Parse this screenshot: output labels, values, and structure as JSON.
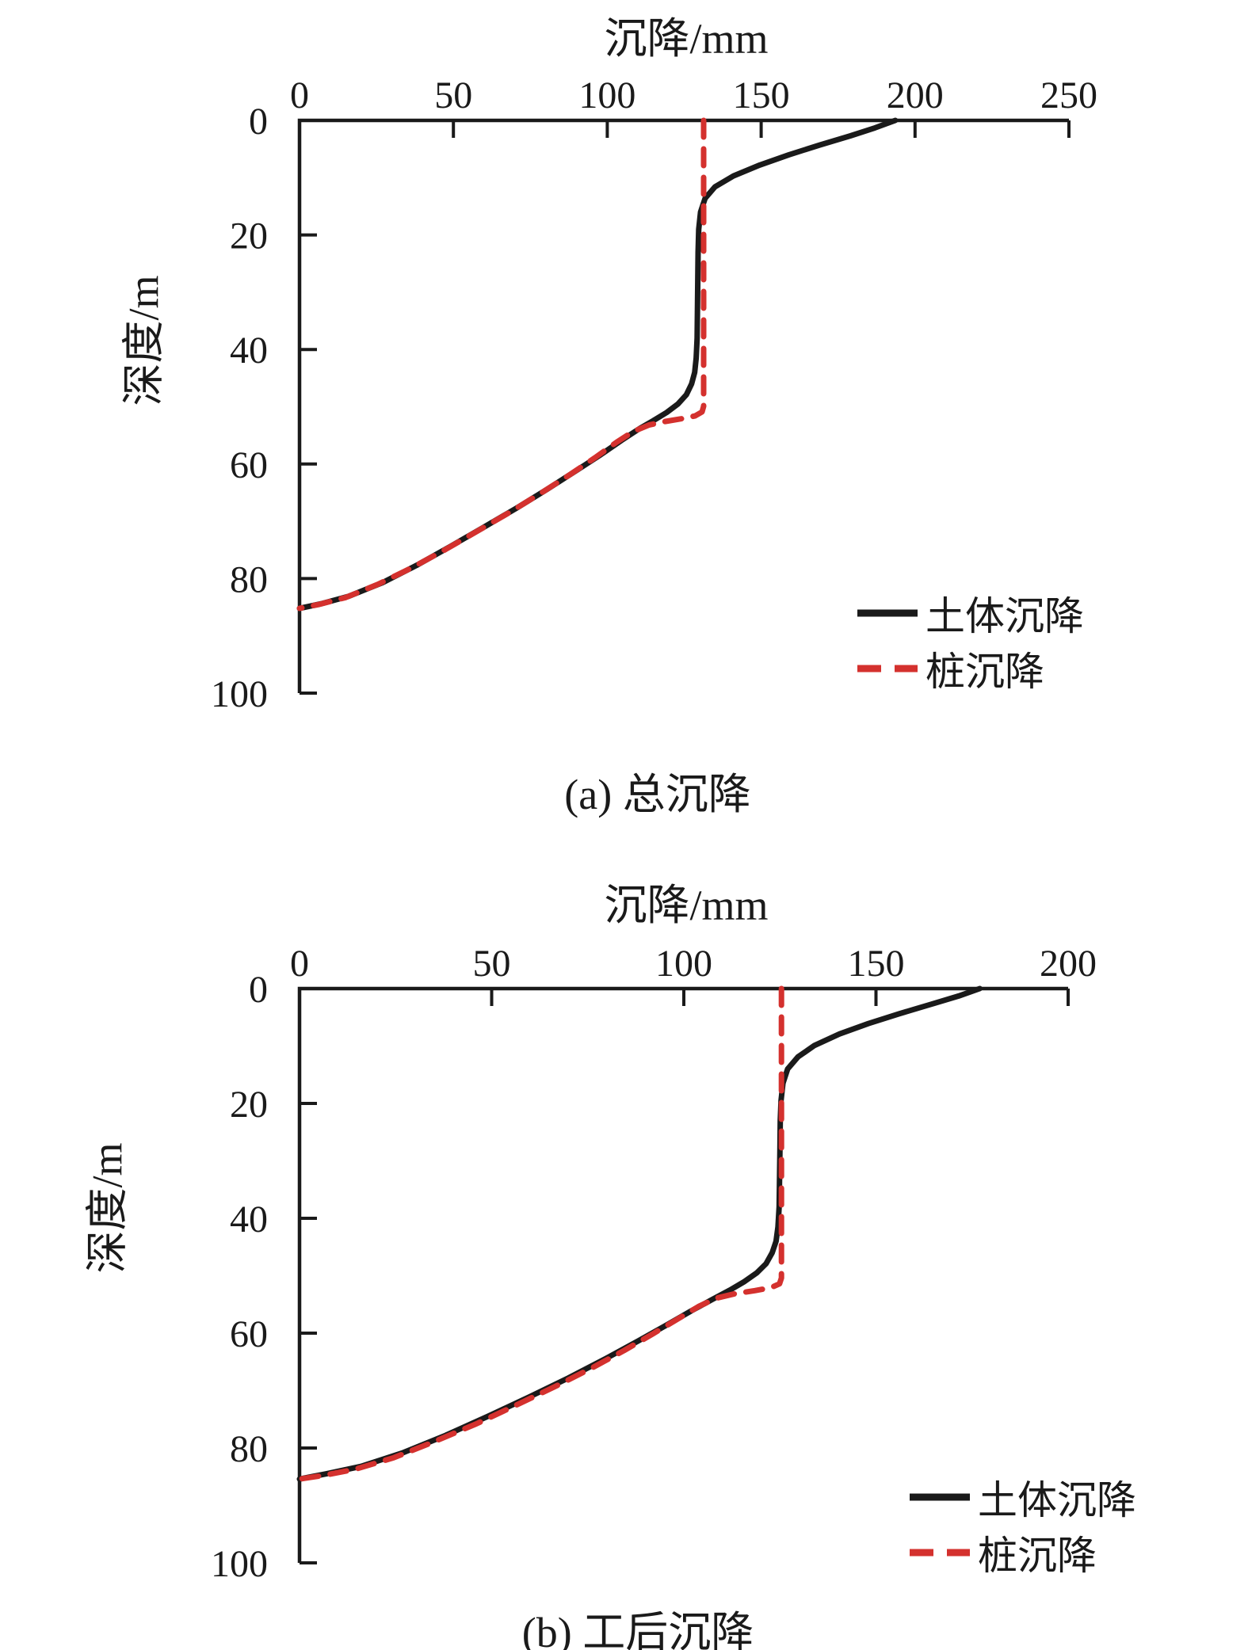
{
  "figure": {
    "background": "#ffffff"
  },
  "colors": {
    "soil": "#1a1a1a",
    "pile": "#d4312e",
    "axis": "#1a1a1a",
    "text": "#1a1a1a"
  },
  "chart_data": [
    {
      "id": "a",
      "type": "line",
      "title": "沉降/mm",
      "ylabel": "深度/m",
      "caption": "(a) 总沉降",
      "xlim": [
        0,
        250
      ],
      "xticks": [
        0,
        50,
        100,
        150,
        200,
        250
      ],
      "ylim": [
        0,
        100
      ],
      "yticks": [
        0,
        20,
        40,
        60,
        80,
        100
      ],
      "y_axis_inverted": true,
      "grid": false,
      "legend_position": "lower right",
      "legend": [
        "土体沉降",
        "桩沉降"
      ],
      "series": [
        {
          "name": "土体沉降",
          "line": "solid",
          "color_key": "soil",
          "points_mm_depth": [
            [
              193.6,
              0
            ],
            [
              187,
              1.3
            ],
            [
              179,
              2.7
            ],
            [
              169,
              4.3
            ],
            [
              159,
              6
            ],
            [
              149.5,
              7.8
            ],
            [
              141,
              9.7
            ],
            [
              135,
              11.6
            ],
            [
              131.8,
              13.6
            ],
            [
              130.3,
              16
            ],
            [
              129.7,
              19
            ],
            [
              129.5,
              23
            ],
            [
              129.4,
              28
            ],
            [
              129.3,
              33
            ],
            [
              129.2,
              38
            ],
            [
              128.9,
              41.5
            ],
            [
              128.4,
              44
            ],
            [
              127.4,
              46
            ],
            [
              125.7,
              47.9
            ],
            [
              123,
              49.5
            ],
            [
              119.3,
              51
            ],
            [
              115,
              52.4
            ],
            [
              110.5,
              53.8
            ],
            [
              104.5,
              55.9
            ],
            [
              97.5,
              58.5
            ],
            [
              89.5,
              61.3
            ],
            [
              80.5,
              64.4
            ],
            [
              70.5,
              67.7
            ],
            [
              60,
              71
            ],
            [
              49,
              74.4
            ],
            [
              38,
              77.7
            ],
            [
              27,
              80.7
            ],
            [
              16,
              83.1
            ],
            [
              7,
              84.4
            ],
            [
              0,
              85.2
            ]
          ]
        },
        {
          "name": "桩沉降",
          "line": "dashed",
          "color_key": "pile",
          "points_mm_depth": [
            [
              131.3,
              0
            ],
            [
              131.3,
              49.9
            ],
            [
              130.8,
              50.9
            ],
            [
              128.5,
              51.6
            ],
            [
              124,
              52.1
            ],
            [
              118.5,
              52.6
            ],
            [
              113.5,
              53.2
            ],
            [
              108.5,
              54.3
            ],
            [
              103,
              56.2
            ],
            [
              96,
              58.9
            ],
            [
              88,
              61.8
            ],
            [
              79,
              64.9
            ],
            [
              69,
              68.2
            ],
            [
              58.5,
              71.5
            ],
            [
              47.5,
              74.9
            ],
            [
              36.5,
              78.1
            ],
            [
              25.5,
              81
            ],
            [
              15,
              83.3
            ],
            [
              6.5,
              84.5
            ],
            [
              0,
              85.2
            ]
          ]
        }
      ]
    },
    {
      "id": "b",
      "type": "line",
      "title": "沉降/mm",
      "ylabel": "深度/m",
      "caption": "(b) 工后沉降",
      "xlim": [
        0,
        200
      ],
      "xticks": [
        0,
        50,
        100,
        150,
        200
      ],
      "ylim": [
        0,
        100
      ],
      "yticks": [
        0,
        20,
        40,
        60,
        80,
        100
      ],
      "y_axis_inverted": true,
      "grid": false,
      "legend_position": "lower right",
      "legend": [
        "土体沉降",
        "桩沉降"
      ],
      "series": [
        {
          "name": "土体沉降",
          "line": "solid",
          "color_key": "soil",
          "points_mm_depth": [
            [
              177,
              0
            ],
            [
              171.5,
              1.3
            ],
            [
              164,
              2.8
            ],
            [
              156,
              4.4
            ],
            [
              148,
              6.1
            ],
            [
              140.5,
              7.9
            ],
            [
              134,
              9.9
            ],
            [
              129.7,
              11.9
            ],
            [
              127,
              14
            ],
            [
              125.8,
              16.5
            ],
            [
              125.3,
              19.5
            ],
            [
              125.1,
              23
            ],
            [
              125,
              28
            ],
            [
              124.9,
              33
            ],
            [
              124.8,
              38
            ],
            [
              124.5,
              41.5
            ],
            [
              124,
              44
            ],
            [
              123,
              46
            ],
            [
              121.4,
              47.9
            ],
            [
              119,
              49.5
            ],
            [
              115.8,
              51
            ],
            [
              112,
              52.5
            ],
            [
              107.5,
              54.1
            ],
            [
              102,
              56.1
            ],
            [
              95.5,
              58.6
            ],
            [
              88,
              61.4
            ],
            [
              79.5,
              64.5
            ],
            [
              70,
              67.8
            ],
            [
              59.8,
              71.1
            ],
            [
              49,
              74.5
            ],
            [
              38,
              77.8
            ],
            [
              27,
              80.8
            ],
            [
              16,
              83.2
            ],
            [
              7,
              84.5
            ],
            [
              0,
              85.4
            ]
          ]
        },
        {
          "name": "桩沉降",
          "line": "dashed",
          "color_key": "pile",
          "points_mm_depth": [
            [
              125.4,
              0
            ],
            [
              125.4,
              50.4
            ],
            [
              124.9,
              51.4
            ],
            [
              122.6,
              52.1
            ],
            [
              118.5,
              52.6
            ],
            [
              113.5,
              53.1
            ],
            [
              108.5,
              53.9
            ],
            [
              104,
              55.3
            ],
            [
              98.5,
              57.5
            ],
            [
              92,
              60.1
            ],
            [
              84.5,
              63
            ],
            [
              76,
              66.1
            ],
            [
              66.5,
              69.3
            ],
            [
              56.5,
              72.5
            ],
            [
              46,
              75.8
            ],
            [
              35,
              78.9
            ],
            [
              24.5,
              81.7
            ],
            [
              14.5,
              83.7
            ],
            [
              6,
              84.8
            ],
            [
              0,
              85.4
            ]
          ]
        }
      ]
    }
  ]
}
